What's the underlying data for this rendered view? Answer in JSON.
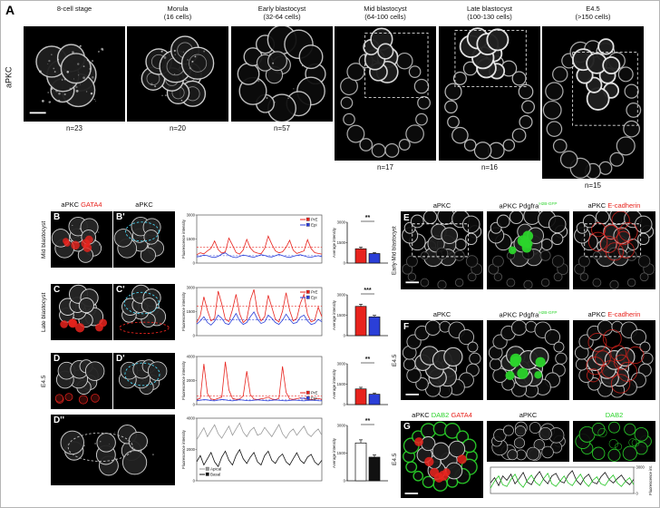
{
  "panelA": {
    "label": "A",
    "side_label": "aPKC",
    "columns": [
      {
        "line1": "8-cell stage",
        "line2": "",
        "n": "n=23"
      },
      {
        "line1": "Morula",
        "line2": "(16 cells)",
        "n": "n=20"
      },
      {
        "line1": "Early blastocyst",
        "line2": "(32-64 cells)",
        "n": "n=57"
      },
      {
        "line1": "Mid blastocyst",
        "line2": "(64-100 cells)",
        "n": "n=17"
      },
      {
        "line1": "Late blastocyst",
        "line2": "(100-130 cells)",
        "n": "n=16"
      },
      {
        "line1": "E4.5",
        "line2": "(>150 cells)",
        "n": "n=15"
      }
    ]
  },
  "panelBCD": {
    "headers": [
      [
        {
          "t": "aPKC "
        },
        {
          "t": "GATA4",
          "c": "#e8231d"
        }
      ],
      [
        {
          "t": "aPKC"
        }
      ]
    ],
    "rows": [
      {
        "label": "Mid blastocyst",
        "letters": [
          "B",
          "B'"
        ]
      },
      {
        "label": "Late blastocyst",
        "letters": [
          "C",
          "C'"
        ]
      },
      {
        "label": "E4.5",
        "letters": [
          "D",
          "D'"
        ]
      },
      {
        "label": "",
        "letters": [
          "D''"
        ]
      }
    ]
  },
  "panelEFG": {
    "rows": [
      {
        "label": "Early-Mid blastocyst",
        "letter": "E",
        "headers": [
          [
            {
              "t": "aPKC"
            }
          ],
          [
            {
              "t": "aPKC Pdgfra"
            },
            {
              "t": "H2B-GFP",
              "c": "#2bd42b",
              "sup": true
            }
          ],
          [
            {
              "t": "aPKC "
            },
            {
              "t": "E-cadherin",
              "c": "#e8231d"
            }
          ]
        ]
      },
      {
        "label": "E4.5",
        "letter": "F",
        "headers": [
          [
            {
              "t": "aPKC"
            }
          ],
          [
            {
              "t": "aPKC Pdgfra"
            },
            {
              "t": "H2B-GFP",
              "c": "#2bd42b",
              "sup": true
            }
          ],
          [
            {
              "t": "aPKC "
            },
            {
              "t": "E-cadherin",
              "c": "#e8231d"
            }
          ]
        ]
      },
      {
        "label": "E4.5",
        "letter": "G",
        "headers": [
          [
            {
              "t": "aPKC "
            },
            {
              "t": "DAB2",
              "c": "#2bd42b"
            },
            {
              "t": " GATA4",
              "c": "#e8231d"
            }
          ],
          [
            {
              "t": "aPKC"
            }
          ],
          [
            {
              "t": "DAB2",
              "c": "#2bd42b"
            }
          ]
        ]
      }
    ]
  },
  "chart_data": {
    "lineB": {
      "type": "line",
      "ylabel": "Fluorescence intensity",
      "ymax": 3000,
      "yticks": [
        0,
        1500,
        3000
      ],
      "legendPos": "tr",
      "legend": [
        {
          "label": "PrE",
          "c": "#e8231d"
        },
        {
          "label": "Epi",
          "c": "#2b3fd8"
        }
      ],
      "thresholds": [
        {
          "v": 1000,
          "c": "#e8231d"
        },
        {
          "v": 460,
          "c": "#2b3fd8"
        }
      ],
      "series": [
        {
          "name": "PrE",
          "c": "#e8231d",
          "values": [
            520,
            640,
            580,
            760,
            920,
            1380,
            840,
            620,
            700,
            1560,
            1120,
            660,
            560,
            820,
            1480,
            940,
            700,
            620,
            580,
            900,
            1680,
            1180,
            760,
            640,
            700,
            980,
            1420,
            800,
            600,
            680,
            760,
            1460,
            900,
            650,
            600,
            560
          ]
        },
        {
          "name": "Epi",
          "c": "#2b3fd8",
          "values": [
            380,
            420,
            500,
            460,
            380,
            350,
            420,
            560,
            640,
            480,
            380,
            340,
            420,
            500,
            460,
            400,
            360,
            440,
            520,
            480,
            400,
            380,
            460,
            540,
            470,
            390,
            350,
            420,
            480,
            520,
            450,
            380,
            360,
            420,
            460,
            400
          ]
        }
      ]
    },
    "barB": {
      "type": "bar",
      "ylabel": "Average intensity",
      "ymax": 3000,
      "yticks": [
        0,
        1500,
        3000
      ],
      "sig": "**",
      "bars": [
        {
          "name": "PrE",
          "v": 1050,
          "e": 120,
          "c": "#e8231d"
        },
        {
          "name": "Epi",
          "v": 700,
          "e": 80,
          "c": "#2b3fd8"
        }
      ]
    },
    "lineC": {
      "type": "line",
      "ylabel": "Fluorescence intensity",
      "ymax": 3000,
      "yticks": [
        0,
        1500,
        3000
      ],
      "legendPos": "tr",
      "legend": [
        {
          "label": "PrE",
          "c": "#e8231d"
        },
        {
          "label": "Epi",
          "c": "#2b3fd8"
        }
      ],
      "thresholds": [
        {
          "v": 1850,
          "c": "#e8231d"
        },
        {
          "v": 980,
          "c": "#2b3fd8"
        }
      ],
      "series": [
        {
          "name": "PrE",
          "c": "#e8231d",
          "values": [
            820,
            1250,
            2420,
            1580,
            920,
            1080,
            2780,
            1980,
            1020,
            880,
            1620,
            2580,
            1380,
            820,
            1020,
            2220,
            2880,
            1480,
            920,
            1180,
            2520,
            1780,
            1020,
            860,
            1520,
            2680,
            1580,
            920,
            1080,
            2020,
            2580,
            1320,
            860,
            960,
            1780,
            1180
          ]
        },
        {
          "name": "Epi",
          "c": "#2b3fd8",
          "values": [
            720,
            920,
            1180,
            820,
            660,
            900,
            1280,
            1080,
            760,
            700,
            1020,
            1380,
            920,
            700,
            820,
            1180,
            1480,
            1020,
            760,
            860,
            1280,
            1080,
            820,
            700,
            960,
            1340,
            1020,
            760,
            820,
            1160,
            1280,
            920,
            700,
            760,
            1020,
            860
          ]
        }
      ]
    },
    "barC": {
      "type": "bar",
      "ylabel": "Average intensity",
      "ymax": 3000,
      "yticks": [
        0,
        1500,
        3000
      ],
      "sig": "***",
      "bars": [
        {
          "name": "PrE",
          "v": 2150,
          "e": 160,
          "c": "#e8231d"
        },
        {
          "name": "Epi",
          "v": 1380,
          "e": 110,
          "c": "#2b3fd8"
        }
      ]
    },
    "lineD": {
      "type": "line",
      "ylabel": "Fluorescence intensity",
      "ymax": 4000,
      "yticks": [
        0,
        2000,
        4000
      ],
      "legendPos": "br",
      "legend": [
        {
          "label": "PrE",
          "c": "#e8231d"
        },
        {
          "label": "Epi",
          "c": "#2b3fd8"
        }
      ],
      "thresholds": [
        {
          "v": 700,
          "c": "#e8231d"
        },
        {
          "v": 380,
          "c": "#2b3fd8"
        }
      ],
      "series": [
        {
          "name": "PrE",
          "c": "#e8231d",
          "values": [
            420,
            520,
            3380,
            920,
            460,
            410,
            520,
            620,
            3560,
            1220,
            520,
            430,
            460,
            720,
            2780,
            820,
            460,
            410,
            480,
            530,
            620,
            460,
            410,
            520,
            3180,
            1020,
            470,
            430,
            490,
            560,
            510,
            440,
            410,
            460,
            510,
            430
          ]
        },
        {
          "name": "Epi",
          "c": "#2b3fd8",
          "values": [
            310,
            360,
            410,
            390,
            330,
            310,
            370,
            430,
            390,
            340,
            310,
            350,
            410,
            370,
            330,
            320,
            360,
            400,
            370,
            330,
            310,
            350,
            390,
            360,
            330,
            310,
            340,
            380,
            360,
            330,
            310,
            340,
            370,
            350,
            320,
            310
          ]
        }
      ]
    },
    "barD": {
      "type": "bar",
      "ylabel": "Average intensity",
      "ymax": 3000,
      "yticks": [
        0,
        1500,
        3000
      ],
      "sig": "**",
      "bars": [
        {
          "name": "PrE",
          "v": 1150,
          "e": 120,
          "c": "#e8231d"
        },
        {
          "name": "Epi",
          "v": 760,
          "e": 90,
          "c": "#2b3fd8"
        }
      ]
    },
    "lineD2": {
      "type": "line",
      "ylabel": "Fluorescence intensity",
      "ymax": 4000,
      "yticks": [
        0,
        2000,
        4000
      ],
      "legendPos": "bl",
      "legend": [
        {
          "label": "Apical",
          "c": "#9a9a9a"
        },
        {
          "label": "Basal",
          "c": "#111111"
        }
      ],
      "series": [
        {
          "name": "Apical",
          "c": "#9a9a9a",
          "values": [
            2620,
            3010,
            3390,
            2820,
            3210,
            3580,
            3010,
            2720,
            3110,
            3490,
            2910,
            3310,
            3690,
            3110,
            2820,
            3210,
            3410,
            2910,
            3010,
            3410,
            3110,
            2820,
            3210,
            3590,
            3010,
            2720,
            3110,
            3310,
            2910,
            3210,
            3490,
            3010,
            2820,
            3110,
            3310,
            2910
          ]
        },
        {
          "name": "Basal",
          "c": "#111111",
          "values": [
            1220,
            1610,
            1010,
            1410,
            1810,
            1210,
            910,
            1510,
            1890,
            1310,
            1010,
            1610,
            1990,
            1410,
            1110,
            1510,
            1810,
            1210,
            1010,
            1610,
            1890,
            1310,
            1110,
            1510,
            1710,
            1210,
            1010,
            1410,
            1790,
            1310,
            1110,
            1510,
            1690,
            1210,
            1010,
            1310
          ]
        }
      ]
    },
    "barD2": {
      "type": "bar",
      "ylabel": "Average intensity",
      "ymax": 3000,
      "yticks": [
        0,
        1500,
        3000
      ],
      "sig": "**",
      "bars": [
        {
          "name": "Apical",
          "v": 2050,
          "e": 170,
          "c": "#ffffff"
        },
        {
          "name": "Basal",
          "v": 1280,
          "e": 120,
          "c": "#111111"
        }
      ]
    },
    "lineG": {
      "type": "line",
      "ylabel": "Fluorescence int.",
      "ymax": 3000,
      "yticks": [
        0,
        3000
      ],
      "yaxis": "right",
      "series": [
        {
          "name": "aPKC",
          "c": "#111111",
          "values": [
            1200,
            1800,
            900,
            2000,
            1500,
            2200,
            1100,
            1700,
            2400,
            1300,
            1000,
            1900,
            2500,
            1600,
            1100,
            2000,
            2300,
            1400,
            1200,
            2100,
            2600,
            1500,
            1000,
            1800,
            2200,
            1300,
            1100,
            1900,
            2400,
            1600,
            1200,
            1700,
            2100,
            1400,
            1000,
            1600
          ]
        },
        {
          "name": "DAB2",
          "c": "#21c421",
          "values": [
            600,
            1400,
            2000,
            1000,
            800,
            1600,
            2200,
            1200,
            700,
            1500,
            2100,
            1300,
            900,
            1700,
            2300,
            1100,
            800,
            1400,
            2000,
            1200,
            900,
            1600,
            2200,
            1300,
            800,
            1500,
            1900,
            1100,
            900,
            1600,
            2100,
            1200,
            800,
            1400,
            1800,
            1000
          ]
        }
      ]
    }
  }
}
